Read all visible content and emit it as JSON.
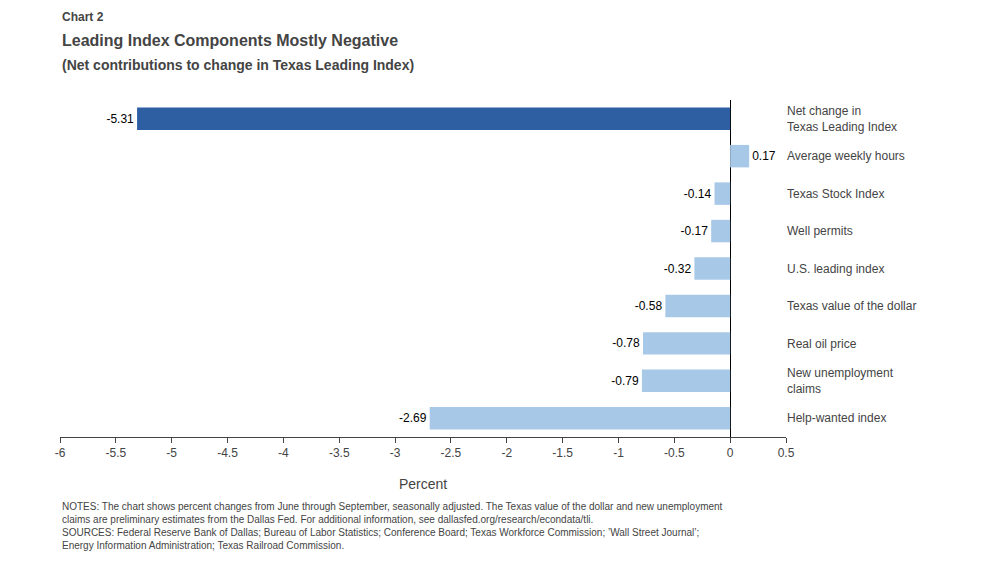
{
  "chart_data": {
    "type": "bar",
    "orientation": "horizontal",
    "title": "Leading Index Components Mostly Negative",
    "subtitle": "(Net contributions to change in Texas Leading Index)",
    "annotations": [
      "Chart 2",
      "NOTES: The chart shows percent changes from June through September, seasonally adjusted. The Texas value of the dollar and new unemployment\nclaims are preliminary estimates from the Dallas Fed. For additional information, see dallasfed.org/research/econdata/tli.\nSOURCES: Federal Reserve Bank of Dallas; Bureau of Labor Statistics; Conference Board; Texas Workforce Commission; ’Wall Street Journal’;\nEnergy Information Administration; Texas Railroad Commission."
    ],
    "categories": [
      "Net change in\nTexas Leading Index",
      "Average weekly hours",
      "Texas Stock Index",
      "Well permits",
      "U.S. leading index",
      "Texas value of the dollar",
      "Real oil price",
      "New unemployment\nclaims",
      "Help-wanted index"
    ],
    "values": [
      -5.31,
      0.17,
      -0.14,
      -0.17,
      -0.32,
      -0.58,
      -0.78,
      -0.79,
      -2.69
    ],
    "colors": [
      "#2E5FA3",
      "#A8C8E8",
      "#A8C8E8",
      "#A8C8E8",
      "#A8C8E8",
      "#A8C8E8",
      "#A8C8E8",
      "#A8C8E8",
      "#A8C8E8"
    ],
    "xlabel": "Percent",
    "xlim": [
      -6.0,
      0.5
    ],
    "xticks": [
      -6,
      -5.5,
      -5,
      -4.5,
      -4,
      -3.5,
      -3,
      -2.5,
      -2,
      -1.5,
      -1,
      -0.5,
      0,
      0.5
    ],
    "data_labels": true,
    "grid": false
  }
}
